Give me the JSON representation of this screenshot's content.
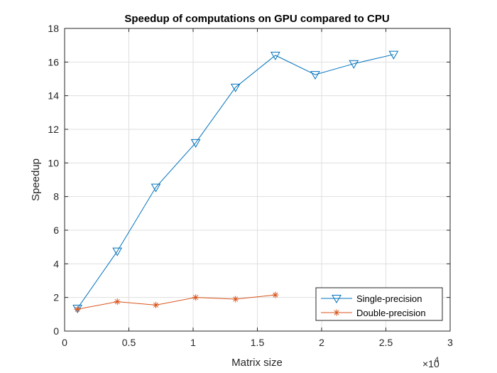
{
  "chart_data": {
    "type": "line",
    "title": "Speedup of computations on GPU compared to CPU",
    "xlabel": "Matrix size",
    "ylabel": "Speedup",
    "x_exponent_label": "×10",
    "x_exponent_power": "4",
    "x_scale_factor": 10000,
    "xlim": [
      0,
      30000
    ],
    "ylim": [
      0,
      18
    ],
    "xticks": [
      0,
      5000,
      10000,
      15000,
      20000,
      25000,
      30000
    ],
    "xtick_labels": [
      "0",
      "0.5",
      "1",
      "1.5",
      "2",
      "2.5",
      "3"
    ],
    "yticks": [
      0,
      2,
      4,
      6,
      8,
      10,
      12,
      14,
      16,
      18
    ],
    "ytick_labels": [
      "0",
      "2",
      "4",
      "6",
      "8",
      "10",
      "12",
      "14",
      "16",
      "18"
    ],
    "grid": true,
    "legend_position": "bottom-right",
    "series": [
      {
        "name": "Single-precision",
        "color": "#0072BD",
        "marker": "triangle-down",
        "x": [
          1000,
          4100,
          7100,
          10200,
          13300,
          16400,
          19500,
          22500,
          25600
        ],
        "y": [
          1.35,
          4.75,
          8.55,
          11.2,
          14.5,
          16.4,
          15.25,
          15.9,
          16.45
        ]
      },
      {
        "name": "Double-precision",
        "color": "#D95319",
        "marker": "asterisk",
        "x": [
          1000,
          4100,
          7100,
          10200,
          13300,
          16400
        ],
        "y": [
          1.3,
          1.75,
          1.55,
          2.0,
          1.9,
          2.15
        ]
      }
    ]
  }
}
